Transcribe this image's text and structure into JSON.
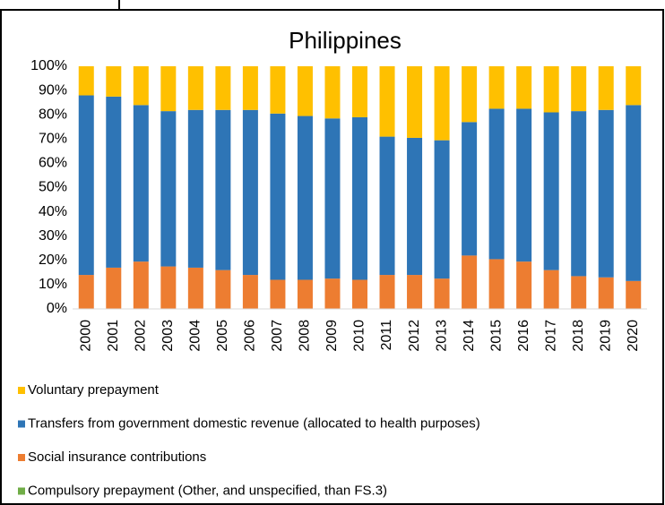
{
  "chart_data": {
    "type": "stacked_bar",
    "title": "Philippines",
    "categories": [
      "2000",
      "2001",
      "2002",
      "2003",
      "2004",
      "2005",
      "2006",
      "2007",
      "2008",
      "2009",
      "2010",
      "2011",
      "2012",
      "2013",
      "2014",
      "2015",
      "2016",
      "2017",
      "2018",
      "2019",
      "2020"
    ],
    "series": [
      {
        "name": "Voluntary prepayment",
        "color": "#ffc000",
        "values": [
          12,
          12.5,
          16,
          18.5,
          18,
          18,
          18,
          19.5,
          20.5,
          21.5,
          21,
          29,
          29.5,
          30.5,
          23,
          17.5,
          17.5,
          19,
          18.5,
          18,
          16
        ]
      },
      {
        "name": "Transfers from government domestic revenue (allocated to health purposes)",
        "color": "#2e75b6",
        "values": [
          74,
          70.5,
          64.5,
          64,
          65,
          66,
          68,
          68.5,
          67.5,
          66,
          67,
          57,
          56.5,
          57,
          55,
          62,
          63,
          65,
          68,
          69,
          72.5
        ]
      },
      {
        "name": "Social insurance contributions",
        "color": "#ed7d31",
        "values": [
          14,
          17,
          19.5,
          17.5,
          17,
          16,
          14,
          12,
          12,
          12.5,
          12,
          14,
          14,
          12.5,
          22,
          20.5,
          19.5,
          16,
          13.5,
          13,
          11.5
        ]
      },
      {
        "name": "Compulsory prepayment (Other, and unspecified, than FS.3)",
        "color": "#70ad47",
        "values": [
          0,
          0,
          0,
          0,
          0,
          0,
          0,
          0,
          0,
          0,
          0,
          0,
          0,
          0,
          0,
          0,
          0,
          0,
          0,
          0,
          0
        ]
      }
    ],
    "ylim": [
      0,
      100
    ],
    "yticks": [
      {
        "value": 0,
        "label": "0%"
      },
      {
        "value": 10,
        "label": "10%"
      },
      {
        "value": 20,
        "label": "20%"
      },
      {
        "value": 30,
        "label": "30%"
      },
      {
        "value": 40,
        "label": "40%"
      },
      {
        "value": 50,
        "label": "50%"
      },
      {
        "value": 60,
        "label": "60%"
      },
      {
        "value": 70,
        "label": "70%"
      },
      {
        "value": 80,
        "label": "80%"
      },
      {
        "value": 90,
        "label": "90%"
      },
      {
        "value": 100,
        "label": "100%"
      }
    ],
    "legend": "bottom"
  }
}
